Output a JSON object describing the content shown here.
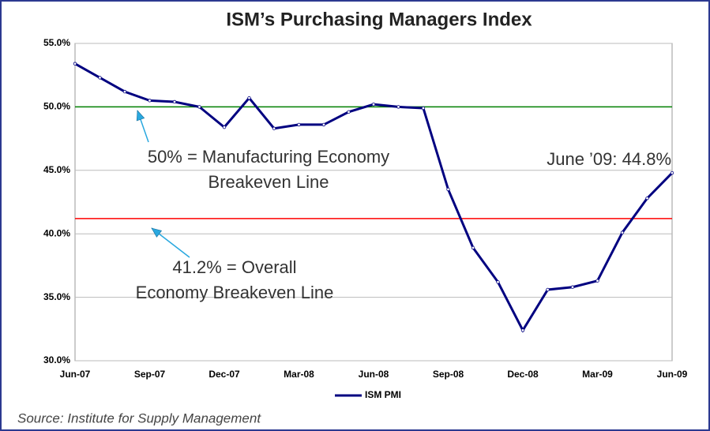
{
  "chart_data": {
    "type": "line",
    "title": "ISM’s Purchasing Managers Index",
    "categories": [
      "Jun-07",
      null,
      null,
      "Sep-07",
      null,
      null,
      "Dec-07",
      null,
      null,
      "Mar-08",
      null,
      null,
      "Jun-08",
      null,
      null,
      "Sep-08",
      null,
      null,
      "Dec-08",
      null,
      null,
      "Mar-09",
      null,
      null,
      "Jun-09"
    ],
    "series": [
      {
        "name": "ISM PMI",
        "color": "#000080",
        "values": [
          53.4,
          52.3,
          51.2,
          50.5,
          50.4,
          50.0,
          48.4,
          50.7,
          48.3,
          48.6,
          48.6,
          49.6,
          50.2,
          50.0,
          49.9,
          43.5,
          38.9,
          36.2,
          32.4,
          35.6,
          35.8,
          36.3,
          40.1,
          42.8,
          44.8
        ]
      }
    ],
    "ylim": [
      30,
      55
    ],
    "yticks": [
      {
        "value": 30,
        "label": "30.0%"
      },
      {
        "value": 35,
        "label": "35.0%"
      },
      {
        "value": 40,
        "label": "40.0%"
      },
      {
        "value": 45,
        "label": "45.0%"
      },
      {
        "value": 50,
        "label": "50.0%"
      },
      {
        "value": 55,
        "label": "55.0%"
      }
    ],
    "grid": true,
    "reference_lines": [
      {
        "value": 50,
        "color": "#008000"
      },
      {
        "value": 41.2,
        "color": "#ff0000"
      }
    ],
    "annotations": [
      {
        "text": [
          "50% = Manufacturing Economy",
          "Breakeven Line"
        ]
      },
      {
        "text": [
          "41.2% = Overall",
          "Economy Breakeven Line"
        ]
      },
      {
        "text": [
          "June ’09: 44.8%"
        ]
      }
    ],
    "legend": "bottom",
    "source": "Source: Institute for Supply Management"
  }
}
